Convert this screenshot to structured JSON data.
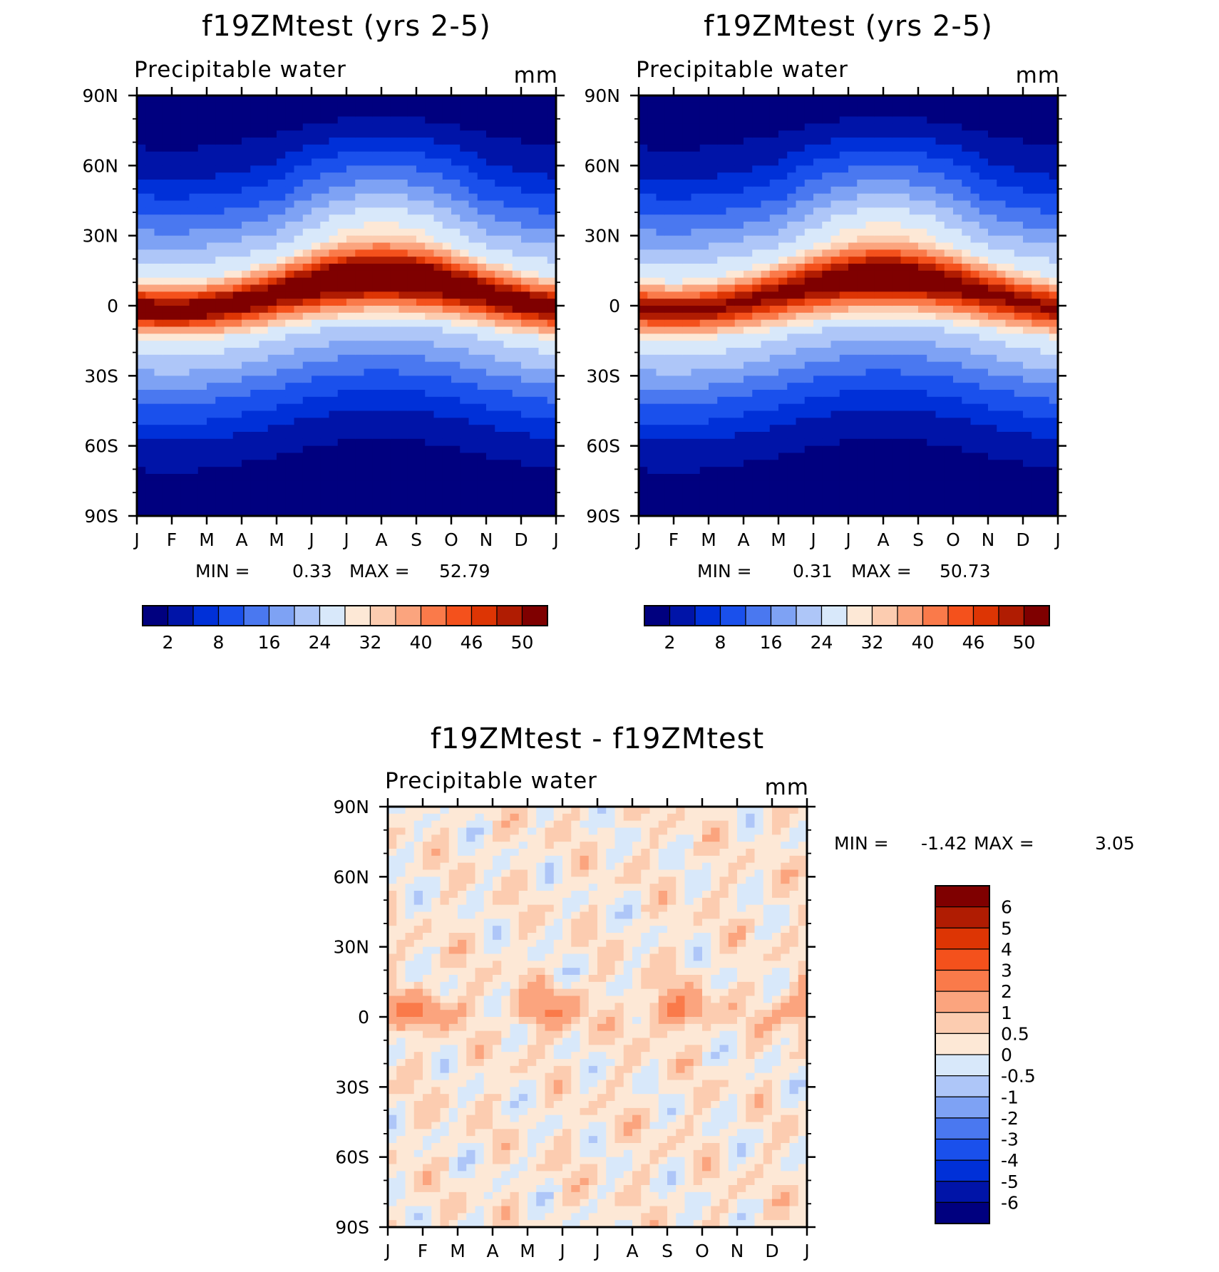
{
  "colors": {
    "abs_levels": [
      "#00007f",
      "#0014a8",
      "#0030d8",
      "#1a50ec",
      "#4a78f0",
      "#7ea2f4",
      "#aec6f8",
      "#d8e8fa",
      "#fde8d6",
      "#fcccb0",
      "#fba47e",
      "#fa7a4a",
      "#f4511c",
      "#dd3504",
      "#b01c02",
      "#7f0000"
    ],
    "diff_levels": [
      "#00007f",
      "#0014a8",
      "#0030d8",
      "#1a50ec",
      "#4a78f0",
      "#7ea2f4",
      "#aec6f8",
      "#d8e8fa",
      "#fde8d6",
      "#fcccb0",
      "#fba47e",
      "#fa7a4a",
      "#f4511c",
      "#dd3504",
      "#b01c02",
      "#7f0000"
    ]
  },
  "panels": {
    "left": {
      "title": "f19ZMtest (yrs 2-5)",
      "subtitle": "Precipitable water",
      "units": "mm",
      "min_label": "MIN =",
      "min_value": "0.33",
      "max_label": "MAX =",
      "max_value": "52.79"
    },
    "right": {
      "title": "f19ZMtest (yrs 2-5)",
      "subtitle": "Precipitable water",
      "units": "mm",
      "min_label": "MIN =",
      "min_value": "0.31",
      "max_label": "MAX =",
      "max_value": "50.73"
    },
    "diff": {
      "title": "f19ZMtest - f19ZMtest",
      "subtitle": "Precipitable water",
      "units": "mm",
      "min_label": "MIN =",
      "min_value": "-1.42",
      "max_label": "MAX =",
      "max_value": "3.05"
    }
  },
  "axes": {
    "lat_labels": [
      "90N",
      "60N",
      "30N",
      "0",
      "30S",
      "60S",
      "90S"
    ],
    "month_labels": [
      "J",
      "F",
      "M",
      "A",
      "M",
      "J",
      "J",
      "A",
      "S",
      "O",
      "N",
      "D",
      "J"
    ]
  },
  "colorbars": {
    "abs_labels": [
      "2",
      "8",
      "16",
      "24",
      "32",
      "40",
      "46",
      "50"
    ],
    "diff_labels": [
      "6",
      "5",
      "4",
      "3",
      "2",
      "1",
      "0.5",
      "0",
      "-0.5",
      "-1",
      "-2",
      "-3",
      "-4",
      "-5",
      "-6"
    ]
  },
  "chart_data": [
    {
      "type": "heatmap",
      "title": "f19ZMtest (yrs 2-5)",
      "subtitle": "Precipitable water",
      "units": "mm",
      "x_categories": [
        "J",
        "F",
        "M",
        "A",
        "M",
        "J",
        "J",
        "A",
        "S",
        "O",
        "N",
        "D",
        "J"
      ],
      "y_range": [
        -90,
        90
      ],
      "y_ticks": [
        "90N",
        "60N",
        "30N",
        "0",
        "30S",
        "60S",
        "90S"
      ],
      "min": 0.33,
      "max": 52.79,
      "contour_levels": [
        2,
        8,
        16,
        24,
        32,
        40,
        46,
        50
      ],
      "description_pattern": "maximum near equator shifting north in JJA"
    },
    {
      "type": "heatmap",
      "title": "f19ZMtest (yrs 2-5)",
      "subtitle": "Precipitable water",
      "units": "mm",
      "x_categories": [
        "J",
        "F",
        "M",
        "A",
        "M",
        "J",
        "J",
        "A",
        "S",
        "O",
        "N",
        "D",
        "J"
      ],
      "y_range": [
        -90,
        90
      ],
      "y_ticks": [
        "90N",
        "60N",
        "30N",
        "0",
        "30S",
        "60S",
        "90S"
      ],
      "min": 0.31,
      "max": 50.73,
      "contour_levels": [
        2,
        8,
        16,
        24,
        32,
        40,
        46,
        50
      ]
    },
    {
      "type": "heatmap",
      "title": "f19ZMtest - f19ZMtest",
      "subtitle": "Precipitable water",
      "units": "mm",
      "x_categories": [
        "J",
        "F",
        "M",
        "A",
        "M",
        "J",
        "J",
        "A",
        "S",
        "O",
        "N",
        "D",
        "J"
      ],
      "y_range": [
        -90,
        90
      ],
      "y_ticks": [
        "90N",
        "60N",
        "30N",
        "0",
        "30S",
        "60S",
        "90S"
      ],
      "min": -1.42,
      "max": 3.05,
      "contour_levels": [
        -6,
        -5,
        -4,
        -3,
        -2,
        -1,
        -0.5,
        0,
        0.5,
        1,
        2,
        3,
        4,
        5,
        6
      ]
    }
  ]
}
